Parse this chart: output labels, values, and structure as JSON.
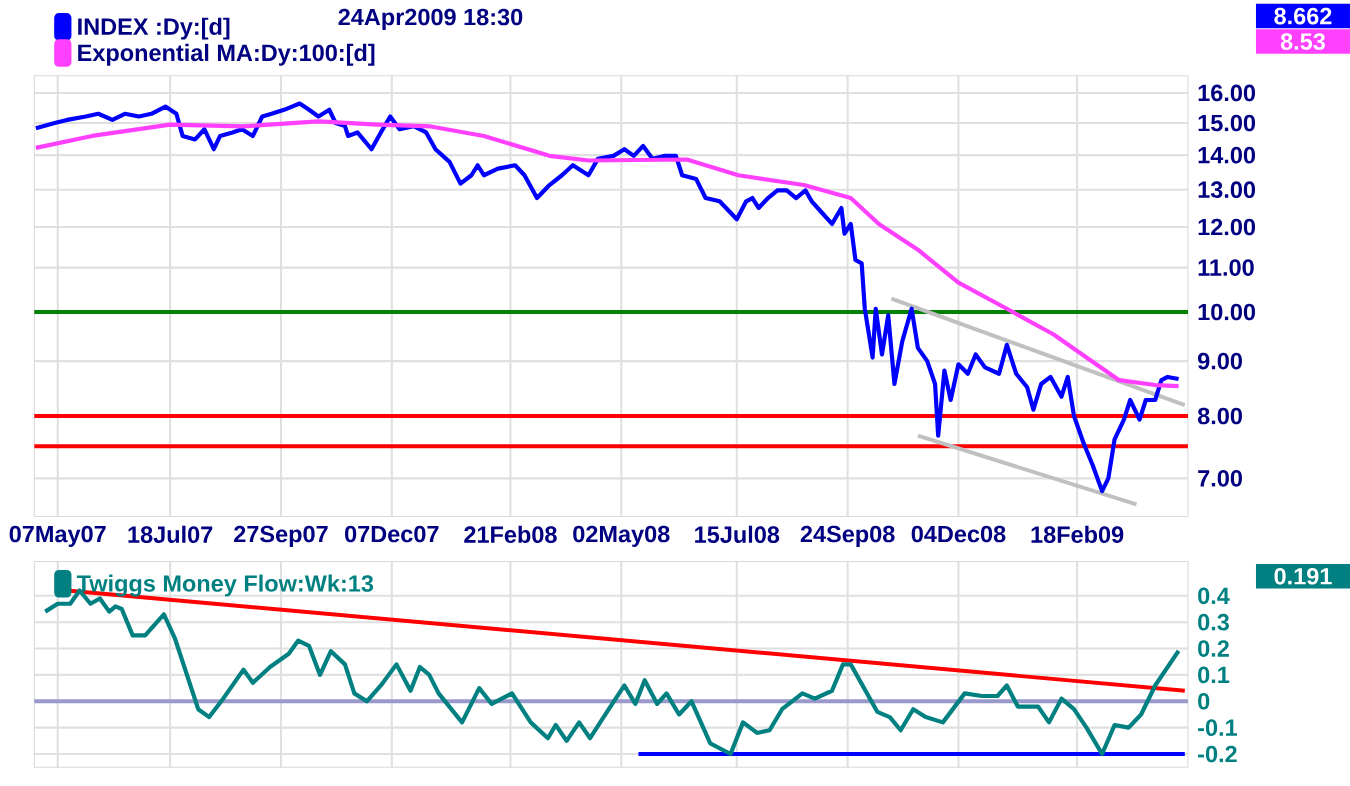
{
  "chart_data": [
    {
      "type": "line",
      "subtitle": "24Apr2009 18:30",
      "log": "y",
      "grid": true,
      "legend": "top left",
      "xlim": [
        "2007-04-22",
        "2009-04-30"
      ],
      "ylim": [
        6.45,
        16.6
      ],
      "xticks": [
        {
          "value": "2007-05-07",
          "label": "07May07"
        },
        {
          "value": "2007-07-18",
          "label": "18Jul07"
        },
        {
          "value": "2007-09-27",
          "label": "27Sep07"
        },
        {
          "value": "2007-12-07",
          "label": "07Dec07"
        },
        {
          "value": "2008-02-21",
          "label": "21Feb08"
        },
        {
          "value": "2008-05-02",
          "label": "02May08"
        },
        {
          "value": "2008-07-15",
          "label": "15Jul08"
        },
        {
          "value": "2008-09-24",
          "label": "24Sep08"
        },
        {
          "value": "2008-12-04",
          "label": "04Dec08"
        },
        {
          "value": "2009-02-18",
          "label": "18Feb09"
        }
      ],
      "yticks": [
        {
          "value": 7,
          "label": "7.00"
        },
        {
          "value": 8,
          "label": "8.00"
        },
        {
          "value": 9,
          "label": "9.00"
        },
        {
          "value": 10,
          "label": "10.00"
        },
        {
          "value": 11,
          "label": "11.00"
        },
        {
          "value": 12,
          "label": "12.00"
        },
        {
          "value": 13,
          "label": "13.00"
        },
        {
          "value": 14,
          "label": "14.00"
        },
        {
          "value": 15,
          "label": "15.00"
        },
        {
          "value": 16,
          "label": "16.00"
        }
      ],
      "ref_lines": [
        {
          "axis": "y",
          "value": 10,
          "color": "#008000"
        },
        {
          "axis": "y",
          "value": 8,
          "color": "#ff0000"
        },
        {
          "axis": "y",
          "value": 7.5,
          "color": "#ff0000"
        }
      ],
      "annotations": [
        "8.662",
        "8.53"
      ],
      "series": [
        {
          "name": "INDEX :Dy:[d]",
          "color": "#0000ff",
          "x": [
            "2007-04-23",
            "2007-05-05",
            "2007-05-13",
            "2007-05-25",
            "2007-06-02",
            "2007-06-11",
            "2007-06-19",
            "2007-06-28",
            "2007-07-06",
            "2007-07-15",
            "2007-07-22",
            "2007-07-26",
            "2007-08-03",
            "2007-08-09",
            "2007-08-15",
            "2007-08-19",
            "2007-08-27",
            "2007-09-02",
            "2007-09-09",
            "2007-09-15",
            "2007-09-21",
            "2007-09-29",
            "2007-10-09",
            "2007-10-15",
            "2007-10-21",
            "2007-10-28",
            "2007-11-01",
            "2007-11-07",
            "2007-11-09",
            "2007-11-15",
            "2007-11-24",
            "2007-11-30",
            "2007-12-06",
            "2007-12-12",
            "2007-12-21",
            "2007-12-29",
            "2008-01-04",
            "2008-01-13",
            "2008-01-20",
            "2008-01-27",
            "2008-01-31",
            "2008-02-04",
            "2008-02-13",
            "2008-02-24",
            "2008-03-01",
            "2008-03-09",
            "2008-03-17",
            "2008-03-25",
            "2008-04-01",
            "2008-04-11",
            "2008-04-17",
            "2008-04-27",
            "2008-05-04",
            "2008-05-10",
            "2008-05-16",
            "2008-05-22",
            "2008-05-30",
            "2008-06-06",
            "2008-06-10",
            "2008-06-19",
            "2008-06-25",
            "2008-07-04",
            "2008-07-15",
            "2008-07-21",
            "2008-07-25",
            "2008-07-29",
            "2008-08-04",
            "2008-08-10",
            "2008-08-16",
            "2008-08-22",
            "2008-08-28",
            "2008-09-01",
            "2008-09-07",
            "2008-09-14",
            "2008-09-20",
            "2008-09-22",
            "2008-09-26",
            "2008-09-29",
            "2008-10-03",
            "2008-10-05",
            "2008-10-10",
            "2008-10-12",
            "2008-10-16",
            "2008-10-20",
            "2008-10-24",
            "2008-10-29",
            "2008-11-04",
            "2008-11-08",
            "2008-11-14",
            "2008-11-19",
            "2008-11-21",
            "2008-11-25",
            "2008-11-29",
            "2008-12-04",
            "2008-12-10",
            "2008-12-15",
            "2008-12-21",
            "2008-12-30",
            "2009-01-04",
            "2009-01-10",
            "2009-01-17",
            "2009-01-21",
            "2009-01-26",
            "2009-02-01",
            "2009-02-08",
            "2009-02-12",
            "2009-02-16",
            "2009-02-22",
            "2009-02-28",
            "2009-03-06",
            "2009-03-10",
            "2009-03-14",
            "2009-03-20",
            "2009-03-24",
            "2009-03-30",
            "2009-04-03",
            "2009-04-09",
            "2009-04-13",
            "2009-04-17",
            "2009-04-24"
          ],
          "values": [
            14.83,
            15.0,
            15.1,
            15.21,
            15.3,
            15.1,
            15.3,
            15.21,
            15.3,
            15.54,
            15.3,
            14.59,
            14.48,
            14.8,
            14.18,
            14.59,
            14.7,
            14.8,
            14.59,
            15.21,
            15.3,
            15.43,
            15.64,
            15.43,
            15.21,
            15.43,
            15.0,
            14.9,
            14.59,
            14.7,
            14.18,
            14.7,
            15.21,
            14.8,
            14.9,
            14.7,
            14.18,
            13.8,
            13.17,
            13.41,
            13.7,
            13.41,
            13.6,
            13.7,
            13.41,
            12.77,
            13.13,
            13.41,
            13.7,
            13.41,
            13.89,
            13.98,
            14.18,
            13.98,
            14.28,
            13.89,
            13.98,
            13.98,
            13.41,
            13.3,
            12.77,
            12.68,
            12.2,
            12.68,
            12.77,
            12.5,
            12.77,
            12.98,
            12.98,
            12.77,
            12.98,
            12.68,
            12.4,
            12.08,
            12.5,
            11.83,
            12.08,
            11.18,
            11.1,
            10.07,
            9.07,
            10.07,
            9.13,
            9.93,
            8.57,
            9.39,
            10.07,
            9.26,
            9.0,
            8.57,
            7.67,
            8.82,
            8.28,
            8.94,
            8.76,
            9.13,
            8.88,
            8.76,
            9.32,
            8.76,
            8.51,
            8.11,
            8.57,
            8.7,
            8.34,
            8.7,
            8.0,
            7.56,
            7.2,
            6.81,
            7.0,
            7.61,
            7.94,
            8.28,
            7.94,
            8.28,
            8.28,
            8.64,
            8.7,
            8.662
          ]
        },
        {
          "name": "Exponential MA:Dy:100:[d]",
          "color": "#ff40ff",
          "x": [
            "2007-04-23",
            "2007-05-29",
            "2007-07-18",
            "2007-09-02",
            "2007-10-21",
            "2007-11-28",
            "2008-01-01",
            "2008-02-04",
            "2008-03-17",
            "2008-04-11",
            "2008-06-13",
            "2008-07-16",
            "2008-08-27",
            "2008-09-26",
            "2008-10-14",
            "2008-11-08",
            "2008-12-04",
            "2009-01-04",
            "2009-02-03",
            "2009-02-24",
            "2009-03-17",
            "2009-04-09",
            "2009-04-24"
          ],
          "values": [
            14.22,
            14.59,
            14.95,
            14.89,
            15.05,
            14.95,
            14.89,
            14.59,
            13.98,
            13.84,
            13.87,
            13.41,
            13.13,
            12.77,
            12.08,
            11.43,
            10.65,
            10.07,
            9.53,
            9.07,
            8.64,
            8.55,
            8.53
          ]
        },
        {
          "color": "#c0c0c0",
          "x": [
            "2008-10-22",
            "2009-04-28"
          ],
          "values": [
            10.29,
            8.19
          ]
        },
        {
          "color": "#c0c0c0",
          "x": [
            "2008-11-08",
            "2009-03-28"
          ],
          "values": [
            7.67,
            6.62
          ]
        }
      ]
    },
    {
      "type": "line",
      "grid": true,
      "legend": "top left",
      "tick_labels": "y",
      "xlim": [
        "2007-04-22",
        "2009-04-30"
      ],
      "ylim": [
        -0.25,
        0.53
      ],
      "xticks": [
        {
          "value": "2007-05-07",
          "label": null
        },
        {
          "value": "2007-07-18",
          "label": null
        },
        {
          "value": "2007-09-27",
          "label": null
        },
        {
          "value": "2007-12-07",
          "label": null
        },
        {
          "value": "2008-02-21",
          "label": null
        },
        {
          "value": "2008-05-02",
          "label": null
        },
        {
          "value": "2008-07-15",
          "label": null
        },
        {
          "value": "2008-09-24",
          "label": null
        },
        {
          "value": "2008-12-04",
          "label": null
        },
        {
          "value": "2009-02-18",
          "label": null
        }
      ],
      "yticks": [
        0.4,
        0.3,
        0.2,
        0.1,
        0,
        -0.1,
        -0.2
      ],
      "ref_lines": [
        {
          "axis": "y",
          "value": 0,
          "color": "#9999cc"
        }
      ],
      "annotations": [
        "0.191"
      ],
      "series": [
        {
          "name": "Twiggs Money Flow:Wk:13",
          "color": "#008080",
          "x": [
            "2007-04-29",
            "2007-05-07",
            "2007-05-15",
            "2007-05-21",
            "2007-05-28",
            "2007-06-03",
            "2007-06-09",
            "2007-06-13",
            "2007-06-17",
            "2007-06-24",
            "2007-07-02",
            "2007-07-08",
            "2007-07-14",
            "2007-07-21",
            "2007-08-05",
            "2007-08-12",
            "2007-08-21",
            "2007-09-03",
            "2007-09-09",
            "2007-09-20",
            "2007-10-02",
            "2007-10-08",
            "2007-10-15",
            "2007-10-22",
            "2007-10-29",
            "2007-11-07",
            "2007-11-13",
            "2007-11-21",
            "2007-11-30",
            "2007-12-10",
            "2007-12-19",
            "2007-12-25",
            "2007-12-31",
            "2008-01-06",
            "2008-01-21",
            "2008-02-01",
            "2008-02-09",
            "2008-02-22",
            "2008-03-05",
            "2008-03-16",
            "2008-03-21",
            "2008-03-28",
            "2008-04-05",
            "2008-04-12",
            "2008-04-24",
            "2008-05-04",
            "2008-05-11",
            "2008-05-17",
            "2008-05-25",
            "2008-05-31",
            "2008-06-08",
            "2008-06-16",
            "2008-06-28",
            "2008-07-11",
            "2008-07-19",
            "2008-07-28",
            "2008-08-05",
            "2008-08-13",
            "2008-08-26",
            "2008-09-03",
            "2008-09-14",
            "2008-09-21",
            "2008-09-26",
            "2008-10-13",
            "2008-10-21",
            "2008-10-28",
            "2008-11-05",
            "2008-11-13",
            "2008-11-24",
            "2008-12-08",
            "2008-12-19",
            "2008-12-29",
            "2009-01-04",
            "2009-01-11",
            "2009-01-24",
            "2009-01-31",
            "2009-02-08",
            "2009-02-16",
            "2009-02-24",
            "2009-03-06",
            "2009-03-14",
            "2009-03-23",
            "2009-03-31",
            "2009-04-09",
            "2009-04-24"
          ],
          "values": [
            0.34,
            0.37,
            0.37,
            0.42,
            0.37,
            0.39,
            0.34,
            0.36,
            0.35,
            0.25,
            0.25,
            0.29,
            0.33,
            0.24,
            -0.03,
            -0.06,
            0.01,
            0.12,
            0.07,
            0.13,
            0.18,
            0.23,
            0.21,
            0.1,
            0.19,
            0.14,
            0.03,
            0.0,
            0.06,
            0.14,
            0.04,
            0.13,
            0.1,
            0.03,
            -0.08,
            0.05,
            -0.01,
            0.03,
            -0.08,
            -0.14,
            -0.09,
            -0.15,
            -0.08,
            -0.14,
            -0.03,
            0.06,
            -0.01,
            0.08,
            -0.01,
            0.03,
            -0.05,
            0.0,
            -0.16,
            -0.2,
            -0.08,
            -0.12,
            -0.11,
            -0.03,
            0.03,
            0.01,
            0.04,
            0.14,
            0.14,
            -0.04,
            -0.06,
            -0.11,
            -0.03,
            -0.06,
            -0.08,
            0.03,
            0.02,
            0.02,
            0.06,
            -0.02,
            -0.02,
            -0.08,
            0.01,
            -0.03,
            -0.1,
            -0.2,
            -0.09,
            -0.1,
            -0.05,
            0.06,
            0.191
          ]
        },
        {
          "color": "#ff0000",
          "x": [
            "2007-05-13",
            "2009-04-28"
          ],
          "values": [
            0.42,
            0.04
          ]
        },
        {
          "color": "#0000ff",
          "x": [
            "2008-05-13",
            "2009-04-28"
          ],
          "values": [
            -0.2,
            -0.2
          ]
        }
      ]
    }
  ]
}
